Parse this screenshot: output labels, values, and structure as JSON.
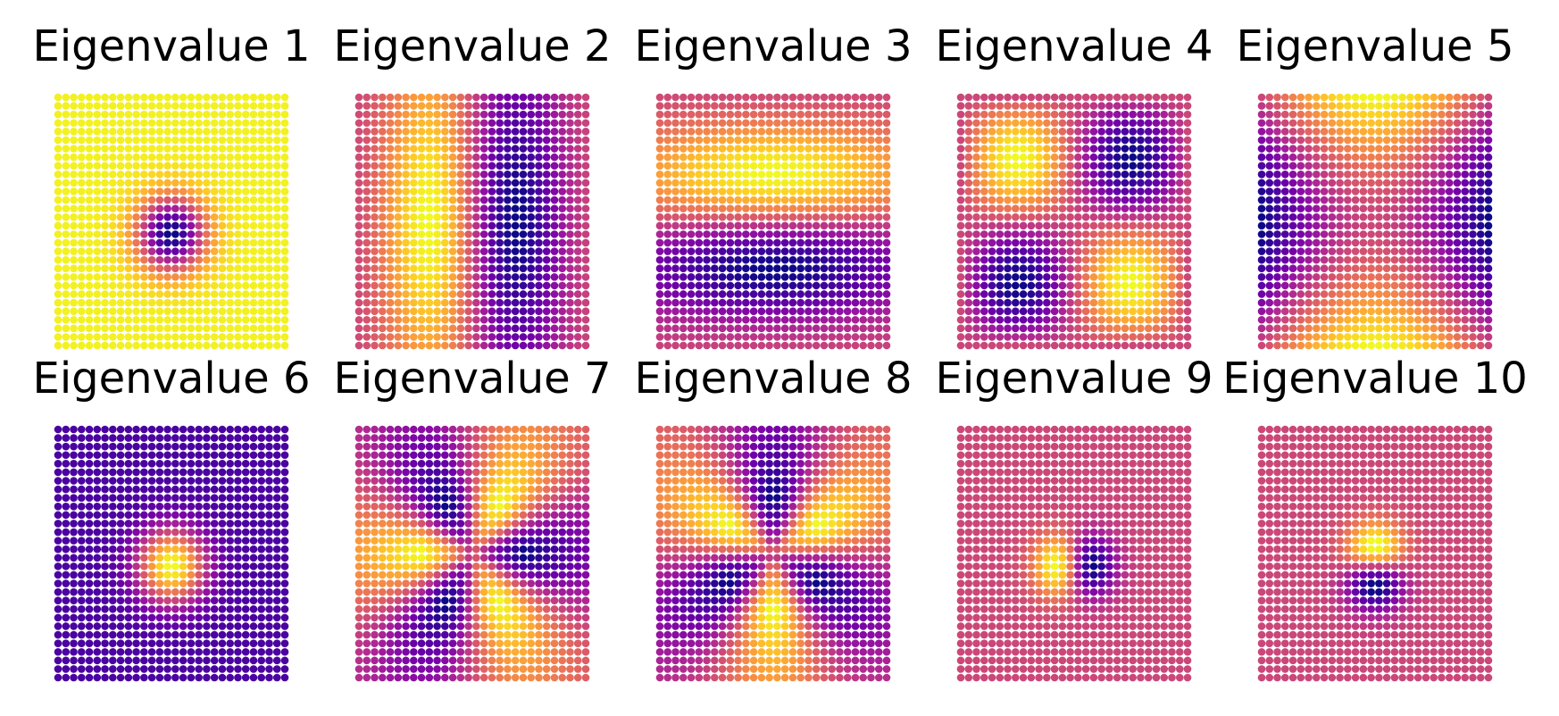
{
  "chart_data": [
    {
      "type": "scatter",
      "title": "Eigenvalue 1",
      "pattern": "point_source",
      "center": [
        0,
        -0.1
      ],
      "sign": -1,
      "axes": "off",
      "colormap": "plasma",
      "grid": false
    },
    {
      "type": "scatter",
      "title": "Eigenvalue 2",
      "pattern": "antisymmetric_x",
      "sign": 1,
      "axes": "off",
      "colormap": "plasma",
      "grid": false
    },
    {
      "type": "scatter",
      "title": "Eigenvalue 3",
      "pattern": "antisymmetric_y",
      "sign": 1,
      "axes": "off",
      "colormap": "plasma",
      "grid": false
    },
    {
      "type": "scatter",
      "title": "Eigenvalue 4",
      "pattern": "quadrupole_xy",
      "sign": 1,
      "axes": "off",
      "colormap": "plasma",
      "grid": false
    },
    {
      "type": "scatter",
      "title": "Eigenvalue 5",
      "pattern": "quadrupole_x2y2",
      "sign": 1,
      "axes": "off",
      "colormap": "plasma",
      "grid": false
    },
    {
      "type": "scatter",
      "title": "Eigenvalue 6",
      "pattern": "point_source",
      "center": [
        0,
        -0.1
      ],
      "sign": 1,
      "axes": "off",
      "colormap": "plasma",
      "grid": false
    },
    {
      "type": "scatter",
      "title": "Eigenvalue 7",
      "pattern": "hexapole_a",
      "sign": 1,
      "axes": "off",
      "colormap": "plasma",
      "grid": false
    },
    {
      "type": "scatter",
      "title": "Eigenvalue 8",
      "pattern": "hexapole_b",
      "sign": 1,
      "axes": "off",
      "colormap": "plasma",
      "grid": false
    },
    {
      "type": "scatter",
      "title": "Eigenvalue 9",
      "pattern": "local_dipole_x",
      "center": [
        0,
        -0.1
      ],
      "sign": 1,
      "axes": "off",
      "colormap": "plasma",
      "grid": false
    },
    {
      "type": "scatter",
      "title": "Eigenvalue 10",
      "pattern": "local_dipole_y",
      "center": [
        0,
        -0.1
      ],
      "sign": 1,
      "axes": "off",
      "colormap": "plasma",
      "grid": false
    }
  ],
  "grid_points": 30,
  "colors": {
    "plasma_stops": [
      "#0d0887",
      "#46039f",
      "#7201a8",
      "#9c179e",
      "#bd3786",
      "#d8576b",
      "#ed7953",
      "#fb9f3a",
      "#fdca26",
      "#f0f921"
    ],
    "background": "#ffffff"
  }
}
